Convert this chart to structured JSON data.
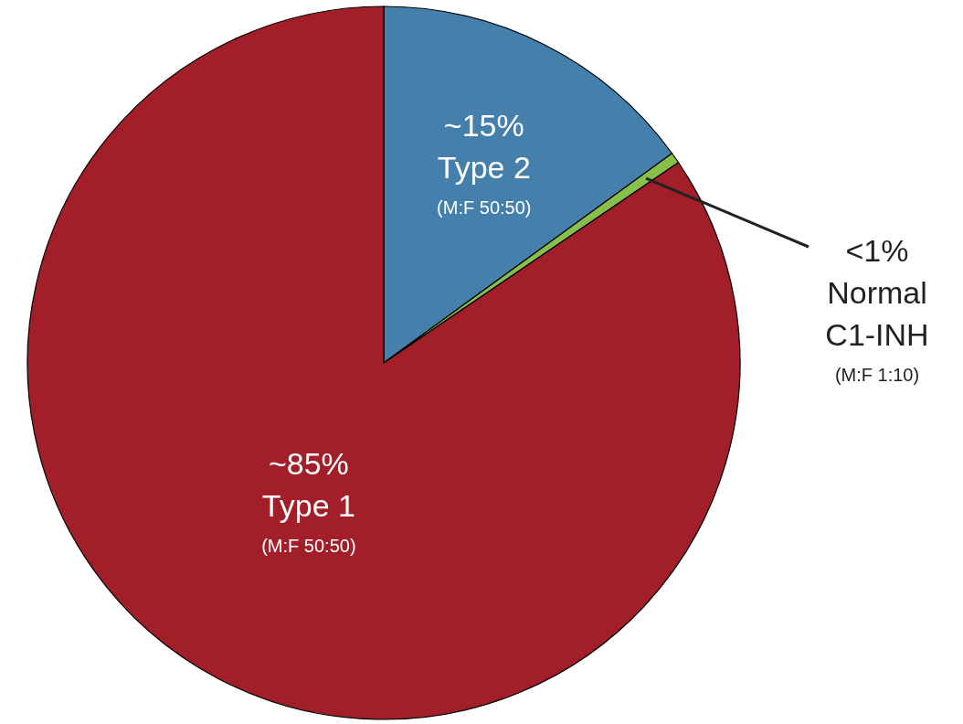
{
  "chart_data": {
    "type": "pie",
    "categories": [
      "Type 2",
      "Normal C1-INH",
      "Type 1"
    ],
    "values": [
      15,
      0.5,
      84.5
    ],
    "colors": [
      "#4580ad",
      "#86c049",
      "#a21e29"
    ],
    "value_labels": [
      "~15%",
      "<1%",
      "~85%"
    ],
    "annotations": [
      "(M:F 50:50)",
      "(M:F 1:10)",
      "(M:F 50:50)"
    ]
  }
}
